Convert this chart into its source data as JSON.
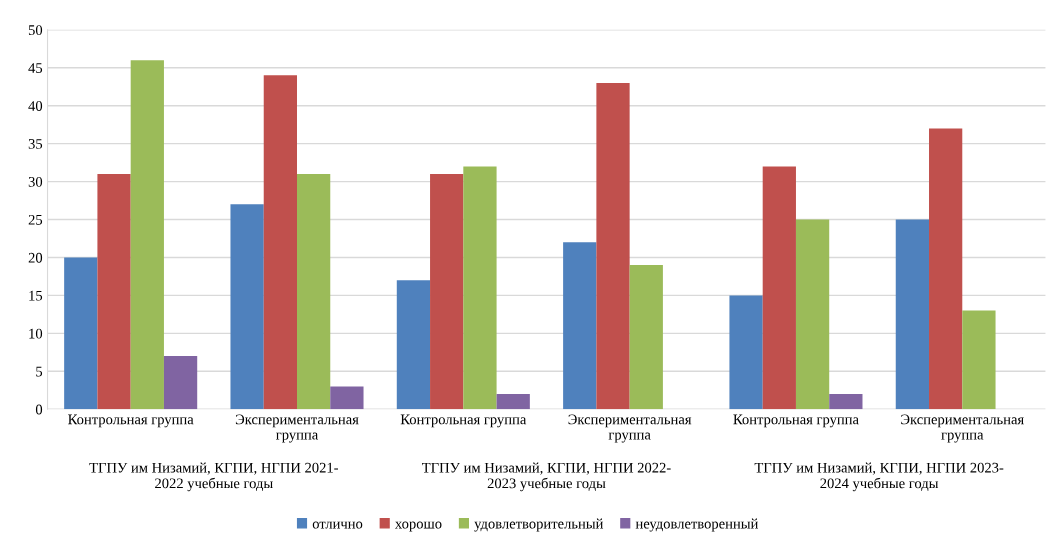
{
  "chart_data": {
    "type": "bar",
    "categories": [
      "Контрольная группа",
      "Экспериментальная\nгруппа",
      "Контрольная группа",
      "Экспериментальная\nгруппа",
      "Контрольная группа",
      "Экспериментальная\nгруппа"
    ],
    "series": [
      {
        "name": "отлично",
        "color": "#4f81bd",
        "values": [
          20,
          27,
          17,
          22,
          15,
          25
        ]
      },
      {
        "name": "хорошо",
        "color": "#c0504d",
        "values": [
          31,
          44,
          31,
          43,
          32,
          37
        ]
      },
      {
        "name": "удовлетворительный",
        "color": "#9bbb59",
        "values": [
          46,
          31,
          32,
          19,
          25,
          13
        ]
      },
      {
        "name": "неудовлетворенный",
        "color": "#8064a2",
        "values": [
          7,
          3,
          2,
          0,
          2,
          0
        ]
      }
    ],
    "annotations": [
      "ТГПУ им Низамий, КГПИ, НГПИ 2021-\n2022 учебные годы",
      "ТГПУ им Низамий, КГПИ, НГПИ 2022-\n2023 учебные годы",
      "ТГПУ им Низамий, КГПИ, НГПИ 2023-\n2024 учебные годы"
    ],
    "ylim": [
      0,
      50
    ],
    "yticks": [
      0,
      5,
      10,
      15,
      20,
      25,
      30,
      35,
      40,
      45,
      50
    ],
    "grid": "y",
    "legend": "bottom"
  }
}
